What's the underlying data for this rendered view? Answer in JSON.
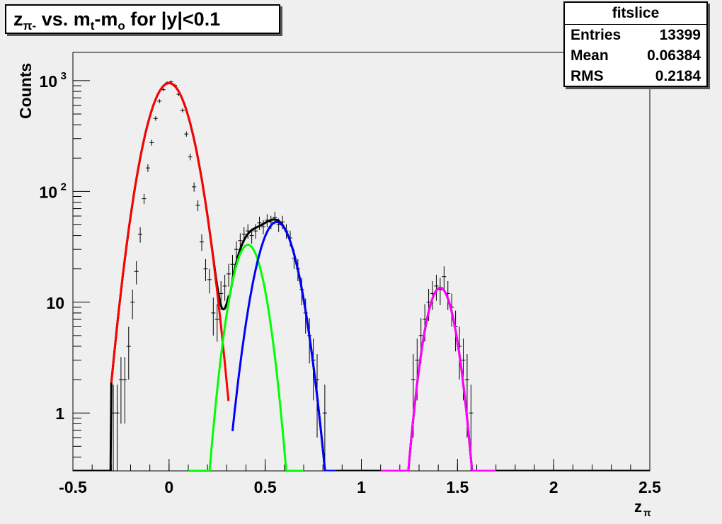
{
  "title": {
    "text": "z",
    "sub1": "π-",
    "mid": " vs. m",
    "sub2": "t",
    "mid2": "-m",
    "sub3": "o",
    "tail": " for |y|<0.1"
  },
  "stats": {
    "name": "fitslice",
    "rows": [
      {
        "key": "Entries",
        "value": "13399"
      },
      {
        "key": "Mean",
        "value": "0.06384"
      },
      {
        "key": "RMS",
        "value": "0.2184"
      }
    ]
  },
  "chart_data": {
    "type": "line",
    "xlabel": "z",
    "xlabel_sub": "π",
    "ylabel": "Counts",
    "xlim": [
      -0.5,
      2.5
    ],
    "ylim": [
      0.3,
      1800
    ],
    "yscale": "log",
    "x_ticks": [
      "-0.5",
      "0",
      "0.5",
      "1",
      "1.5",
      "2",
      "2.5"
    ],
    "y_ticks": [
      {
        "v": 1,
        "label": "1"
      },
      {
        "v": 10,
        "label": "10"
      },
      {
        "v": 100,
        "label": "10",
        "exp": "2"
      },
      {
        "v": 1000,
        "label": "10",
        "exp": "3"
      }
    ],
    "gaussians": [
      {
        "name": "red",
        "color": "#ff0000",
        "A": 950,
        "mu": 0.0,
        "sigma": 0.085,
        "range": [
          -0.3,
          0.31
        ]
      },
      {
        "name": "green",
        "color": "#00ff00",
        "A": 33,
        "mu": 0.41,
        "sigma": 0.065,
        "range": [
          0.1,
          0.7
        ]
      },
      {
        "name": "blue",
        "color": "#0000ff",
        "A": 53,
        "mu": 0.56,
        "sigma": 0.078,
        "range": [
          0.33,
          0.87
        ]
      },
      {
        "name": "magenta",
        "color": "#ff00ff",
        "A": 13.5,
        "mu": 1.41,
        "sigma": 0.06,
        "range": [
          1.1,
          1.7
        ]
      }
    ],
    "total_color": "#000000",
    "data_points": [
      [
        -0.29,
        1,
        0.8
      ],
      [
        -0.27,
        1,
        0.8
      ],
      [
        -0.25,
        2,
        1.2
      ],
      [
        -0.23,
        2,
        1.2
      ],
      [
        -0.21,
        4,
        2
      ],
      [
        -0.19,
        10,
        3
      ],
      [
        -0.17,
        19,
        4.5
      ],
      [
        -0.15,
        41,
        6.5
      ],
      [
        -0.13,
        86,
        9
      ],
      [
        -0.11,
        163,
        13
      ],
      [
        -0.09,
        276,
        17
      ],
      [
        -0.07,
        456,
        21
      ],
      [
        -0.05,
        654,
        26
      ],
      [
        -0.03,
        830,
        29
      ],
      [
        -0.01,
        955,
        31
      ],
      [
        0.01,
        975,
        31
      ],
      [
        0.03,
        905,
        30
      ],
      [
        0.05,
        755,
        27
      ],
      [
        0.07,
        540,
        23
      ],
      [
        0.09,
        330,
        18
      ],
      [
        0.11,
        205,
        14
      ],
      [
        0.13,
        110,
        10.5
      ],
      [
        0.15,
        75,
        8.5
      ],
      [
        0.17,
        35,
        6
      ],
      [
        0.19,
        20,
        4.5
      ],
      [
        0.21,
        16,
        4
      ],
      [
        0.23,
        8,
        3
      ],
      [
        0.25,
        7,
        2.6
      ],
      [
        0.27,
        12,
        3.5
      ],
      [
        0.29,
        14,
        3.7
      ],
      [
        0.31,
        18,
        4.2
      ],
      [
        0.33,
        22,
        4.7
      ],
      [
        0.35,
        30,
        5.5
      ],
      [
        0.37,
        36,
        6
      ],
      [
        0.39,
        41,
        6.4
      ],
      [
        0.41,
        44,
        6.6
      ],
      [
        0.43,
        40,
        6.3
      ],
      [
        0.45,
        44,
        6.6
      ],
      [
        0.47,
        52,
        7.2
      ],
      [
        0.49,
        48,
        7
      ],
      [
        0.51,
        55,
        7.4
      ],
      [
        0.53,
        53,
        7.3
      ],
      [
        0.55,
        58,
        7.6
      ],
      [
        0.57,
        50,
        7
      ],
      [
        0.59,
        53,
        7.3
      ],
      [
        0.61,
        44,
        6.6
      ],
      [
        0.63,
        38,
        6.2
      ],
      [
        0.65,
        25,
        5
      ],
      [
        0.67,
        20,
        4.5
      ],
      [
        0.69,
        13,
        3.6
      ],
      [
        0.71,
        8,
        2.8
      ],
      [
        0.73,
        5,
        2.2
      ],
      [
        0.75,
        3,
        1.7
      ],
      [
        0.77,
        2,
        1.4
      ],
      [
        0.81,
        1,
        0.8
      ],
      [
        1.27,
        2,
        1.4
      ],
      [
        1.29,
        3,
        1.7
      ],
      [
        1.31,
        5,
        2.2
      ],
      [
        1.33,
        7,
        2.6
      ],
      [
        1.35,
        10,
        3.2
      ],
      [
        1.37,
        12,
        3.5
      ],
      [
        1.39,
        14,
        3.7
      ],
      [
        1.41,
        13,
        3.6
      ],
      [
        1.43,
        17,
        4.1
      ],
      [
        1.45,
        12,
        3.5
      ],
      [
        1.47,
        9,
        3
      ],
      [
        1.49,
        6,
        2.4
      ],
      [
        1.51,
        4,
        2
      ],
      [
        1.53,
        3,
        1.7
      ],
      [
        1.55,
        2,
        1.4
      ],
      [
        1.57,
        1,
        0.8
      ]
    ]
  }
}
